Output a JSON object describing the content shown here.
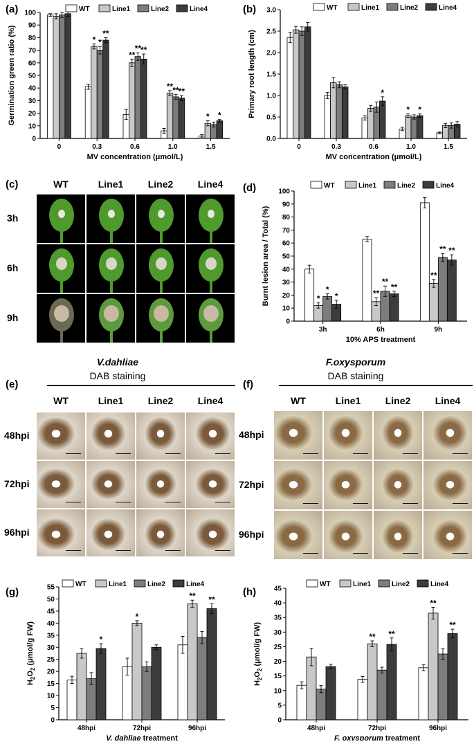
{
  "legend": [
    "WT",
    "Line1",
    "Line2",
    "Line4"
  ],
  "colors": {
    "WT": "#ffffff",
    "Line1": "#c8c8c8",
    "Line2": "#7d7d7d",
    "Line4": "#3c3c3c"
  },
  "panel_labels": {
    "a": "(a)",
    "b": "(b)",
    "c": "(c)",
    "d": "(d)",
    "e": "(e)",
    "f": "(f)",
    "g": "(g)",
    "h": "(h)"
  },
  "photo_c": {
    "columns": [
      "WT",
      "Line1",
      "Line2",
      "Line4"
    ],
    "rows": [
      "3h",
      "6h",
      "9h"
    ]
  },
  "photo_e": {
    "title": "V.dahliae",
    "subtitle": "DAB staining",
    "columns": [
      "WT",
      "Line1",
      "Line2",
      "Line4"
    ],
    "rows": [
      "48hpi",
      "72hpi",
      "96hpi"
    ]
  },
  "photo_f": {
    "title": "F.oxysporum",
    "subtitle": "DAB staining",
    "columns": [
      "WT",
      "Line1",
      "Line2",
      "Line4"
    ],
    "rows": [
      "48hpi",
      "72hpi",
      "96hpi"
    ]
  },
  "chart_data": [
    {
      "id": "a",
      "type": "bar",
      "categories": [
        "0",
        "0.3",
        "0.6",
        "1.0",
        "1.5"
      ],
      "xlabel": "MV concentration (μmol/L)",
      "ylabel": "Germination green ratio (%)",
      "ylim": [
        0,
        100
      ],
      "yticks": [
        0,
        10,
        20,
        30,
        40,
        50,
        60,
        70,
        80,
        90,
        100
      ],
      "series": [
        {
          "name": "WT",
          "values": [
            98,
            41,
            19,
            6,
            2
          ],
          "errors": [
            1,
            2,
            4,
            2,
            1
          ]
        },
        {
          "name": "Line1",
          "values": [
            97,
            73,
            60,
            36,
            12
          ],
          "errors": [
            2,
            2,
            3,
            2,
            2
          ]
        },
        {
          "name": "Line2",
          "values": [
            98,
            70,
            65,
            33,
            11
          ],
          "errors": [
            2,
            3,
            3,
            2,
            2
          ]
        },
        {
          "name": "Line4",
          "values": [
            99,
            78,
            63,
            32,
            14
          ],
          "errors": [
            2,
            2,
            4,
            2,
            1
          ]
        }
      ],
      "annotations": [
        {
          "cat": 1,
          "series": 1,
          "text": "*"
        },
        {
          "cat": 1,
          "series": 2,
          "text": "*"
        },
        {
          "cat": 1,
          "series": 3,
          "text": "**"
        },
        {
          "cat": 2,
          "series": 1,
          "text": "**"
        },
        {
          "cat": 2,
          "series": 2,
          "text": "**"
        },
        {
          "cat": 2,
          "series": 3,
          "text": "**"
        },
        {
          "cat": 3,
          "series": 1,
          "text": "**"
        },
        {
          "cat": 3,
          "series": 2,
          "text": "**"
        },
        {
          "cat": 3,
          "series": 3,
          "text": "**"
        },
        {
          "cat": 4,
          "series": 1,
          "text": "*"
        },
        {
          "cat": 4,
          "series": 3,
          "text": "*"
        }
      ]
    },
    {
      "id": "b",
      "type": "bar",
      "categories": [
        "0",
        "0.3",
        "0.6",
        "1.0",
        "1.5"
      ],
      "xlabel": "MV concentration (μmol/L)",
      "ylabel": "Primary root length (cm)",
      "ylim": [
        0,
        3.0
      ],
      "yticks": [
        0.0,
        0.5,
        1.0,
        1.5,
        2.0,
        2.5,
        3.0
      ],
      "ytick_labels": [
        "0.0",
        "0.5",
        "1.0",
        "1.5",
        "2.0",
        "2.5",
        "3.0"
      ],
      "series": [
        {
          "name": "WT",
          "values": [
            2.35,
            1.0,
            0.48,
            0.22,
            0.13
          ],
          "errors": [
            0.12,
            0.07,
            0.05,
            0.04,
            0.02
          ]
        },
        {
          "name": "Line1",
          "values": [
            2.53,
            1.3,
            0.7,
            0.53,
            0.3
          ],
          "errors": [
            0.08,
            0.12,
            0.07,
            0.04,
            0.05
          ]
        },
        {
          "name": "Line2",
          "values": [
            2.5,
            1.25,
            0.73,
            0.5,
            0.3
          ],
          "errors": [
            0.1,
            0.07,
            0.12,
            0.05,
            0.06
          ]
        },
        {
          "name": "Line4",
          "values": [
            2.6,
            1.2,
            0.87,
            0.53,
            0.33
          ],
          "errors": [
            0.1,
            0.05,
            0.1,
            0.04,
            0.06
          ]
        }
      ],
      "annotations": [
        {
          "cat": 2,
          "series": 3,
          "text": "*"
        },
        {
          "cat": 3,
          "series": 1,
          "text": "*"
        },
        {
          "cat": 3,
          "series": 3,
          "text": "*"
        }
      ]
    },
    {
      "id": "d",
      "type": "bar",
      "categories": [
        "3h",
        "6h",
        "9h"
      ],
      "xlabel": "10% APS treatment",
      "ylabel": "Burnt lesion area / Total (%)",
      "ylim": [
        0,
        100
      ],
      "yticks": [
        0,
        10,
        20,
        30,
        40,
        50,
        60,
        70,
        80,
        90,
        100
      ],
      "series": [
        {
          "name": "WT",
          "values": [
            40,
            63,
            91
          ],
          "errors": [
            3,
            2,
            4
          ]
        },
        {
          "name": "Line1",
          "values": [
            12,
            15,
            29
          ],
          "errors": [
            2,
            3,
            3
          ]
        },
        {
          "name": "Line2",
          "values": [
            19,
            23,
            49
          ],
          "errors": [
            2,
            4,
            3
          ]
        },
        {
          "name": "Line4",
          "values": [
            13,
            21,
            47
          ],
          "errors": [
            3,
            2,
            4
          ]
        }
      ],
      "annotations": [
        {
          "cat": 0,
          "series": 1,
          "text": "*"
        },
        {
          "cat": 0,
          "series": 2,
          "text": "*"
        },
        {
          "cat": 0,
          "series": 3,
          "text": "*"
        },
        {
          "cat": 1,
          "series": 1,
          "text": "**"
        },
        {
          "cat": 1,
          "series": 2,
          "text": "**"
        },
        {
          "cat": 1,
          "series": 3,
          "text": "**"
        },
        {
          "cat": 2,
          "series": 1,
          "text": "**"
        },
        {
          "cat": 2,
          "series": 2,
          "text": "**"
        },
        {
          "cat": 2,
          "series": 3,
          "text": "**"
        }
      ]
    },
    {
      "id": "g",
      "type": "bar",
      "categories": [
        "48hpi",
        "72hpi",
        "96hpi"
      ],
      "xlabel": "V. dahliae treatment",
      "ylabel": "H2O2 (μmol/g FW)",
      "ylim": [
        0,
        55
      ],
      "yticks": [
        0,
        5,
        10,
        15,
        20,
        25,
        30,
        35,
        40,
        45,
        50,
        55
      ],
      "series": [
        {
          "name": "WT",
          "values": [
            16.5,
            22,
            31
          ],
          "errors": [
            1.5,
            3.5,
            3.5
          ]
        },
        {
          "name": "Line1",
          "values": [
            27.5,
            40,
            48
          ],
          "errors": [
            2,
            1,
            1.5
          ]
        },
        {
          "name": "Line2",
          "values": [
            17,
            22,
            34
          ],
          "errors": [
            2.5,
            2,
            2.5
          ]
        },
        {
          "name": "Line4",
          "values": [
            29.5,
            30,
            46
          ],
          "errors": [
            2,
            1,
            2
          ]
        }
      ],
      "annotations": [
        {
          "cat": 0,
          "series": 3,
          "text": "*"
        },
        {
          "cat": 1,
          "series": 1,
          "text": "*"
        },
        {
          "cat": 2,
          "series": 1,
          "text": "**"
        },
        {
          "cat": 2,
          "series": 3,
          "text": "**"
        }
      ]
    },
    {
      "id": "h",
      "type": "bar",
      "categories": [
        "48hpi",
        "72hpi",
        "96hpi"
      ],
      "xlabel": "F. oxysporum treatment",
      "ylabel": "H2O2 (μmol/g FW)",
      "ylim": [
        0,
        45
      ],
      "yticks": [
        0,
        5,
        10,
        15,
        20,
        25,
        30,
        35,
        40,
        45
      ],
      "series": [
        {
          "name": "WT",
          "values": [
            11.8,
            13.8,
            17.8
          ],
          "errors": [
            1.2,
            1,
            1
          ]
        },
        {
          "name": "Line1",
          "values": [
            21.5,
            26,
            36.5
          ],
          "errors": [
            3,
            1,
            2
          ]
        },
        {
          "name": "Line2",
          "values": [
            10.5,
            17,
            22.5
          ],
          "errors": [
            1.2,
            1,
            1.8
          ]
        },
        {
          "name": "Line4",
          "values": [
            18.2,
            25.8,
            29.5
          ],
          "errors": [
            0.8,
            2.2,
            1.5
          ]
        }
      ],
      "annotations": [
        {
          "cat": 1,
          "series": 1,
          "text": "**"
        },
        {
          "cat": 1,
          "series": 3,
          "text": "**"
        },
        {
          "cat": 2,
          "series": 1,
          "text": "**"
        },
        {
          "cat": 2,
          "series": 3,
          "text": "**"
        }
      ]
    }
  ]
}
